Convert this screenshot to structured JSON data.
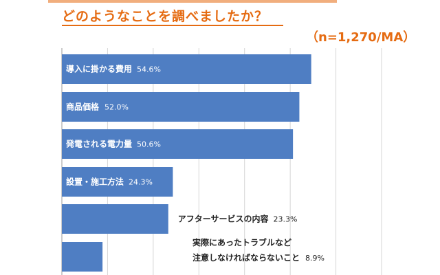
{
  "header": {
    "title": "どのようなことを調べましたか？",
    "note": "（n=1,270/MA）"
  },
  "colors": {
    "bar": "#4f7ec3",
    "title": "#e56b12",
    "grid": "#d6d6d6",
    "text_on_bar": "#ffffff",
    "text_outside": "#222222"
  },
  "chart_data": {
    "type": "bar",
    "orientation": "horizontal",
    "categories": [
      "導入に掛かる費用",
      "商品価格",
      "発電される電力量",
      "設置・施工方法",
      "アフターサービスの内容",
      "実際にあったトラブルなど\n注意しなければならないこと"
    ],
    "values": [
      54.6,
      52.0,
      50.6,
      24.3,
      23.3,
      8.9
    ],
    "value_labels": [
      "54.6%",
      "52.0%",
      "50.6%",
      "24.3%",
      "23.3%",
      "8.9%"
    ],
    "label_inside_bar": [
      true,
      true,
      true,
      true,
      false,
      false
    ],
    "xlim": [
      0,
      70
    ],
    "grid": true,
    "title": "どのようなことを調べましたか？",
    "xlabel": "",
    "ylabel": ""
  }
}
